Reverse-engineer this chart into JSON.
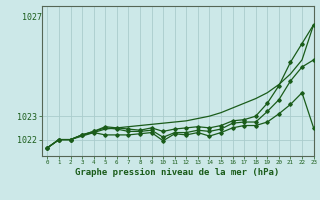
{
  "title": "Graphe pression niveau de la mer (hPa)",
  "bg_color": "#cce8e8",
  "grid_color": "#aacccc",
  "line_color": "#1a5c1a",
  "marker_color": "#1a5c1a",
  "xlim": [
    -0.5,
    23
  ],
  "ylim": [
    1021.3,
    1027.7
  ],
  "yticks": [
    1022,
    1023
  ],
  "ytick_extra": 1027,
  "xticks": [
    0,
    1,
    2,
    3,
    4,
    5,
    6,
    7,
    8,
    9,
    10,
    11,
    12,
    13,
    14,
    15,
    16,
    17,
    18,
    19,
    20,
    21,
    22,
    23
  ],
  "series_smooth": [
    1021.65,
    1022.0,
    1022.0,
    1022.15,
    1022.3,
    1022.45,
    1022.5,
    1022.55,
    1022.6,
    1022.65,
    1022.7,
    1022.75,
    1022.8,
    1022.9,
    1023.0,
    1023.15,
    1023.35,
    1023.55,
    1023.75,
    1024.0,
    1024.35,
    1024.8,
    1025.4,
    1026.9
  ],
  "series_upper": [
    1021.65,
    1022.0,
    1022.0,
    1022.2,
    1022.35,
    1022.55,
    1022.5,
    1022.45,
    1022.4,
    1022.5,
    1022.35,
    1022.45,
    1022.5,
    1022.55,
    1022.5,
    1022.6,
    1022.8,
    1022.85,
    1023.0,
    1023.55,
    1024.3,
    1025.3,
    1026.1,
    1026.9
  ],
  "series_mid": [
    1021.65,
    1022.0,
    1022.0,
    1022.2,
    1022.35,
    1022.5,
    1022.45,
    1022.35,
    1022.35,
    1022.4,
    1022.1,
    1022.3,
    1022.3,
    1022.4,
    1022.35,
    1022.45,
    1022.7,
    1022.75,
    1022.75,
    1023.2,
    1023.7,
    1024.5,
    1025.1,
    1025.4
  ],
  "series_low": [
    1021.65,
    1022.0,
    1022.0,
    1022.2,
    1022.3,
    1022.2,
    1022.2,
    1022.2,
    1022.25,
    1022.3,
    1021.95,
    1022.25,
    1022.2,
    1022.3,
    1022.15,
    1022.3,
    1022.5,
    1022.6,
    1022.6,
    1022.75,
    1023.1,
    1023.5,
    1024.0,
    1022.5
  ]
}
